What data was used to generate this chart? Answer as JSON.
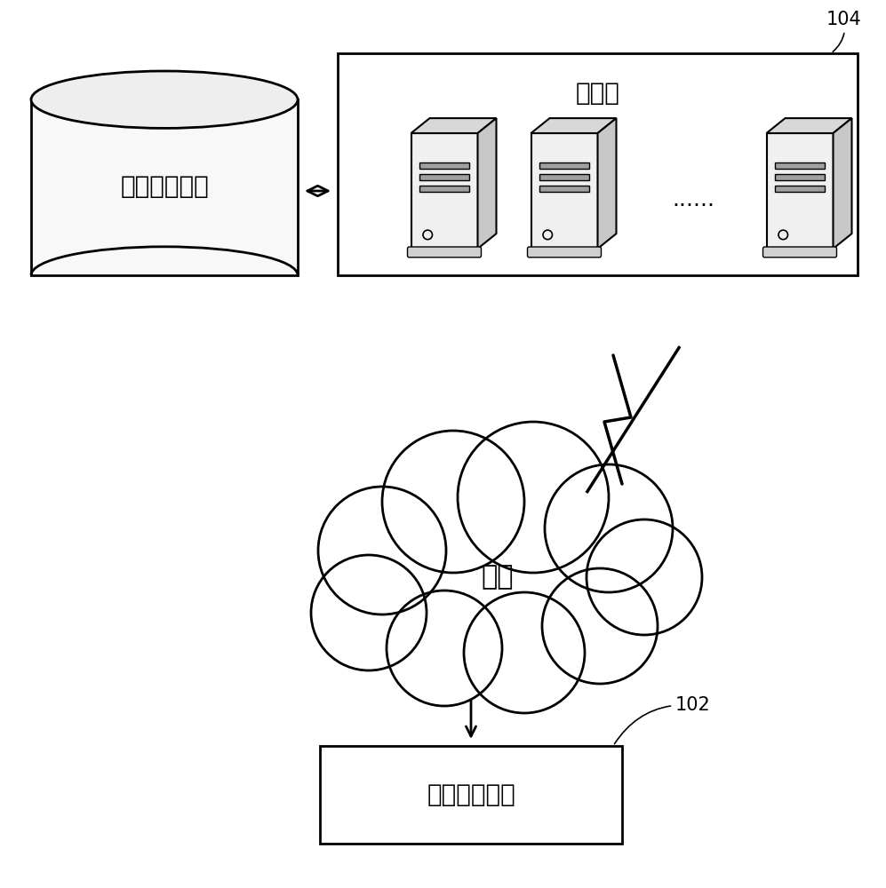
{
  "bg_color": "#ffffff",
  "label_104": "104",
  "label_102": "102",
  "server_box_label": "服务器",
  "storage_label": "数据存储系统",
  "network_label": "网络",
  "dc_grid_label": "直流电网系统",
  "dots_label": "......",
  "font_color": "#000000",
  "line_color": "#000000",
  "font_size_label": 20,
  "font_size_ref": 15,
  "font_size_dots": 18
}
